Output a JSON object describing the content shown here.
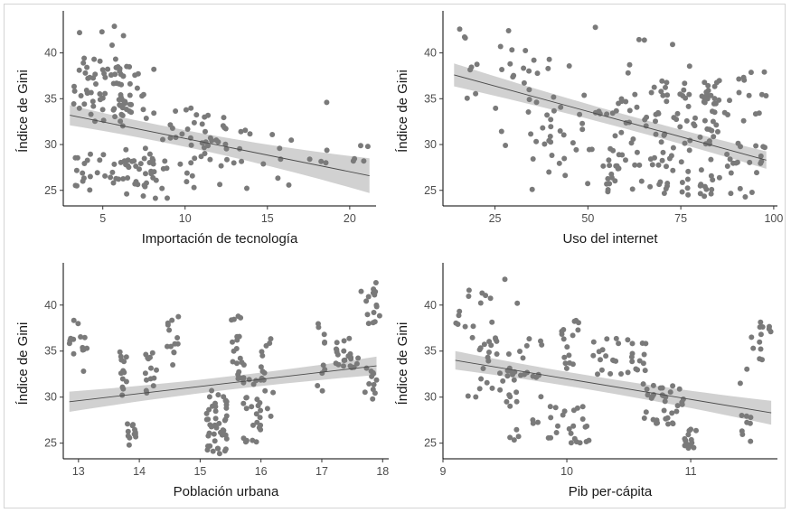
{
  "chart_data": [
    {
      "type": "scatter",
      "xlabel": "Importación de tecnología",
      "ylabel": "Índice de Gini",
      "xlim": [
        2.6,
        21.6
      ],
      "ylim": [
        23.3,
        44.0
      ],
      "xticks": [
        5,
        10,
        15,
        20
      ],
      "yticks": [
        25,
        30,
        35,
        40
      ],
      "trend": {
        "x": [
          3.0,
          21.2
        ],
        "y": [
          33.2,
          26.6
        ],
        "band": [
          1.1,
          0.45,
          1.9
        ]
      },
      "clusters": [
        {
          "x": [
            3.2,
            7.5
          ],
          "y": [
            32.5,
            38.5
          ],
          "n": 70
        },
        {
          "x": [
            3.0,
            6.5
          ],
          "y": [
            25.0,
            29.0
          ],
          "n": 22
        },
        {
          "x": [
            5.5,
            9.0
          ],
          "y": [
            24.0,
            28.5
          ],
          "n": 30
        },
        {
          "x": [
            6.0,
            12.5
          ],
          "y": [
            27.0,
            34.5
          ],
          "n": 50
        },
        {
          "x": [
            3.5,
            7.0
          ],
          "y": [
            38.0,
            43.0
          ],
          "n": 14
        },
        {
          "x": [
            10.0,
            17.0
          ],
          "y": [
            25.0,
            32.0
          ],
          "n": 26
        },
        {
          "x": [
            17.0,
            21.0
          ],
          "y": [
            26.5,
            30.0
          ],
          "n": 8
        }
      ],
      "extra_points": [
        [
          18.6,
          34.6
        ],
        [
          21.1,
          29.8
        ],
        [
          8.1,
          38.2
        ],
        [
          15.8,
          28.4
        ]
      ]
    },
    {
      "type": "scatter",
      "xlabel": "Uso del internet",
      "ylabel": "Índice de Gini",
      "xlim": [
        11,
        101
      ],
      "ylim": [
        23.3,
        44.0
      ],
      "xticks": [
        25,
        50,
        75,
        100
      ],
      "yticks": [
        25,
        30,
        35,
        40
      ],
      "trend": {
        "x": [
          14,
          98
        ],
        "y": [
          37.6,
          28.3
        ],
        "band": [
          1.25,
          0.45,
          0.95
        ]
      },
      "clusters": [
        {
          "x": [
            14,
            35
          ],
          "y": [
            35.0,
            43.0
          ],
          "n": 16
        },
        {
          "x": [
            25,
            50
          ],
          "y": [
            30.0,
            40.5
          ],
          "n": 26
        },
        {
          "x": [
            35,
            62
          ],
          "y": [
            25.5,
            35.0
          ],
          "n": 30
        },
        {
          "x": [
            55,
            85
          ],
          "y": [
            30.0,
            37.0
          ],
          "n": 60
        },
        {
          "x": [
            55,
            85
          ],
          "y": [
            24.5,
            30.0
          ],
          "n": 45
        },
        {
          "x": [
            80,
            98
          ],
          "y": [
            24.0,
            38.5
          ],
          "n": 60
        },
        {
          "x": [
            60,
            78
          ],
          "y": [
            24.5,
            42.0
          ],
          "n": 18
        }
      ],
      "extra_points": [
        [
          15.5,
          42.6
        ],
        [
          27.8,
          29.9
        ],
        [
          35.0,
          25.1
        ],
        [
          52.0,
          42.8
        ],
        [
          65.2,
          41.4
        ]
      ]
    },
    {
      "type": "scatter",
      "xlabel": "Población urbana",
      "ylabel": "Índice de Gini",
      "xlim": [
        12.75,
        18.1
      ],
      "ylim": [
        23.3,
        44.0
      ],
      "xticks": [
        13,
        14,
        15,
        16,
        17,
        18
      ],
      "yticks": [
        25,
        30,
        35,
        40
      ],
      "trend": {
        "x": [
          12.85,
          17.9
        ],
        "y": [
          29.5,
          33.4
        ],
        "band": [
          1.1,
          0.4,
          1.0
        ]
      },
      "clusters": [
        {
          "x": [
            12.85,
            13.2
          ],
          "y": [
            32.5,
            38.5
          ],
          "n": 14
        },
        {
          "x": [
            13.65,
            13.8
          ],
          "y": [
            29.8,
            35.2
          ],
          "n": 14
        },
        {
          "x": [
            13.8,
            13.95
          ],
          "y": [
            24.8,
            27.5
          ],
          "n": 12
        },
        {
          "x": [
            14.1,
            14.3
          ],
          "y": [
            30.0,
            35.0
          ],
          "n": 14
        },
        {
          "x": [
            14.4,
            14.65
          ],
          "y": [
            34.5,
            39.0
          ],
          "n": 12
        },
        {
          "x": [
            15.1,
            15.45
          ],
          "y": [
            23.8,
            31.0
          ],
          "n": 45
        },
        {
          "x": [
            15.5,
            15.7
          ],
          "y": [
            32.0,
            39.0
          ],
          "n": 18
        },
        {
          "x": [
            15.7,
            16.05
          ],
          "y": [
            25.0,
            34.0
          ],
          "n": 30
        },
        {
          "x": [
            15.95,
            16.2
          ],
          "y": [
            27.5,
            36.5
          ],
          "n": 14
        },
        {
          "x": [
            16.9,
            17.05
          ],
          "y": [
            30.0,
            38.0
          ],
          "n": 10
        },
        {
          "x": [
            17.2,
            17.6
          ],
          "y": [
            33.0,
            36.5
          ],
          "n": 22
        },
        {
          "x": [
            17.6,
            17.95
          ],
          "y": [
            38.0,
            43.0
          ],
          "n": 16
        },
        {
          "x": [
            17.65,
            17.9
          ],
          "y": [
            29.7,
            33.5
          ],
          "n": 12
        }
      ],
      "extra_points": [
        [
          14.55,
          33.5
        ],
        [
          16.2,
          30.5
        ]
      ]
    },
    {
      "type": "scatter",
      "xlabel": "Pib per-cápita",
      "ylabel": "Índice de Gini",
      "xlim": [
        9.0,
        11.7
      ],
      "ylim": [
        23.3,
        44.0
      ],
      "xticks": [
        9,
        10,
        11
      ],
      "yticks": [
        25,
        30,
        35,
        40
      ],
      "trend": {
        "x": [
          9.1,
          11.65
        ],
        "y": [
          34.0,
          28.3
        ],
        "band": [
          1.0,
          0.4,
          1.3
        ]
      },
      "clusters": [
        {
          "x": [
            9.1,
            9.4
          ],
          "y": [
            36.0,
            42.5
          ],
          "n": 14
        },
        {
          "x": [
            9.2,
            9.8
          ],
          "y": [
            30.0,
            37.0
          ],
          "n": 45
        },
        {
          "x": [
            9.5,
            9.8
          ],
          "y": [
            25.0,
            31.0
          ],
          "n": 12
        },
        {
          "x": [
            9.8,
            10.2
          ],
          "y": [
            25.0,
            29.0
          ],
          "n": 24
        },
        {
          "x": [
            9.95,
            10.1
          ],
          "y": [
            33.0,
            38.5
          ],
          "n": 16
        },
        {
          "x": [
            10.2,
            10.65
          ],
          "y": [
            32.5,
            36.5
          ],
          "n": 30
        },
        {
          "x": [
            10.6,
            10.95
          ],
          "y": [
            27.0,
            31.5
          ],
          "n": 35
        },
        {
          "x": [
            10.95,
            11.05
          ],
          "y": [
            24.0,
            26.5
          ],
          "n": 14
        },
        {
          "x": [
            11.45,
            11.65
          ],
          "y": [
            32.5,
            38.5
          ],
          "n": 14
        },
        {
          "x": [
            11.4,
            11.5
          ],
          "y": [
            25.0,
            29.0
          ],
          "n": 8
        }
      ],
      "extra_points": [
        [
          9.5,
          42.8
        ],
        [
          9.6,
          40.2
        ],
        [
          11.0,
          26.5
        ],
        [
          11.4,
          31.5
        ]
      ]
    }
  ],
  "style": {
    "point_color": "#7a7a7a",
    "line_color": "#4a4a4a",
    "band_color": "#c9c9c9"
  }
}
